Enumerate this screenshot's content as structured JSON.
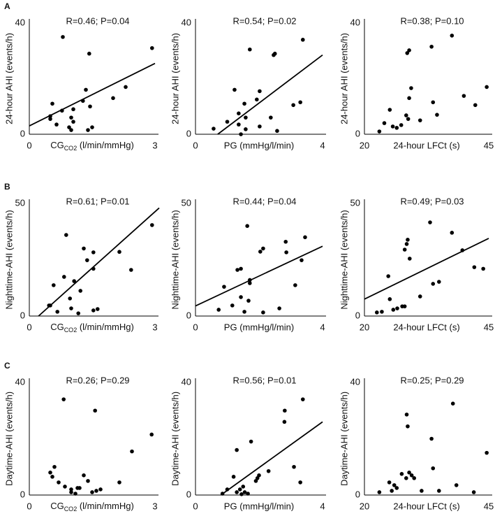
{
  "panel_labels": [
    "A",
    "B",
    "C"
  ],
  "chart_data": [
    {
      "type": "scatter",
      "annotation": "R=0.46; P=0.04",
      "xlabel": [
        "CG",
        "CO2",
        " (l/min/mmHg)"
      ],
      "ylabel": "24-hour AHI (events/h)",
      "xlim": [
        0,
        3
      ],
      "ylim": [
        0,
        40
      ],
      "xticks": [
        0,
        3
      ],
      "yticks": [
        0,
        40
      ],
      "x": [
        0.8,
        2.93,
        1.43,
        1.35,
        2.3,
        2.0,
        1.28,
        0.55,
        1.45,
        1.05,
        0.78,
        0.5,
        0.5,
        1.0,
        1.05,
        0.65,
        0.95,
        1.0,
        1.5,
        1.4
      ],
      "values": [
        35,
        31,
        29,
        16,
        17,
        13,
        12,
        11,
        10,
        9,
        8.5,
        6.5,
        5.5,
        6,
        4.5,
        3.5,
        2.5,
        1.5,
        2.5,
        1.5
      ],
      "fit_line": {
        "x": [
          0,
          3
        ],
        "y": [
          3,
          25.5
        ]
      }
    },
    {
      "type": "scatter",
      "annotation": "R=0.54; P=0.02",
      "xlabel": "PG (mmHg/l/min)",
      "ylabel": "24-hour AHI (events/h)",
      "xlim": [
        0,
        4
      ],
      "ylim": [
        0,
        40
      ],
      "xticks": [
        0,
        4
      ],
      "yticks": [
        0,
        40
      ],
      "x": [
        3.38,
        1.71,
        2.5,
        2.46,
        1.23,
        2.02,
        1.93,
        1.54,
        3.3,
        3.08,
        1.36,
        1.58,
        1.0,
        2.37,
        0.57,
        1.36,
        2.02,
        2.57,
        1.58,
        1.43
      ],
      "values": [
        34,
        30.5,
        29,
        28.5,
        16,
        15.5,
        12.5,
        11,
        11.5,
        10.5,
        7.5,
        6,
        4.5,
        6,
        2,
        3.5,
        2.8,
        1.2,
        1.8,
        0
      ],
      "fit_line": {
        "x": [
          0.7,
          4
        ],
        "y": [
          0,
          28.5
        ]
      }
    },
    {
      "type": "scatter",
      "annotation": "R=0.38; P=0.10",
      "xlabel": "24-hour LFCt (s)",
      "ylabel": "24-hour AHI (events/h)",
      "xlim": [
        20,
        45
      ],
      "ylim": [
        0,
        40
      ],
      "xticks": [
        20,
        45
      ],
      "yticks": [
        0,
        40
      ],
      "x": [
        37.6,
        29,
        28.6,
        33.5,
        29.4,
        29,
        40,
        44.6,
        42.3,
        33.8,
        25.1,
        28.4,
        28.8,
        34.6,
        31.2,
        24,
        25.7,
        26.5,
        27.4,
        23
      ],
      "values": [
        35.5,
        30.2,
        29.2,
        31.5,
        16.6,
        13,
        13.8,
        17,
        10.5,
        11.5,
        8.8,
        6.8,
        5.5,
        7,
        5,
        4,
        2.8,
        2.3,
        3.3,
        1
      ]
    },
    {
      "type": "scatter",
      "annotation": "R=0.61; P=0.01",
      "xlabel": [
        "CG",
        "CO2",
        " (l/min/mmHg)"
      ],
      "ylabel": "Nighttime-AHI (events/h)",
      "xlim": [
        0,
        3
      ],
      "ylim": [
        0,
        50
      ],
      "xticks": [
        0,
        3
      ],
      "yticks": [
        0,
        50
      ],
      "x": [
        2.93,
        0.88,
        1.3,
        1.53,
        2.15,
        1.38,
        1.53,
        2.43,
        0.83,
        1.07,
        0.58,
        1.22,
        0.97,
        1.0,
        0.47,
        0.5,
        0.67,
        1.17,
        1.63,
        1.53
      ],
      "values": [
        40.4,
        36,
        30,
        28.3,
        28.5,
        24.8,
        21,
        20.5,
        17.4,
        15.5,
        13.7,
        11.2,
        7.8,
        3.4,
        4.7,
        4.7,
        1.9,
        1.2,
        3.1,
        2.5
      ],
      "fit_line": {
        "x": [
          0.22,
          3.1
        ],
        "y": [
          0,
          48
        ]
      }
    },
    {
      "type": "scatter",
      "annotation": "R=0.44; P=0.04",
      "xlabel": "PG (mmHg/l/min)",
      "ylabel": "Nighttime-AHI (events/h)",
      "xlim": [
        0,
        4
      ],
      "ylim": [
        0,
        50
      ],
      "xticks": [
        0,
        4
      ],
      "yticks": [
        0,
        50
      ],
      "x": [
        2.84,
        1.63,
        3.45,
        2.13,
        2.04,
        2.86,
        1.43,
        1.32,
        1.71,
        1.71,
        3.14,
        3.34,
        0.9,
        1.43,
        1.67,
        1.16,
        0.73,
        1.54,
        2.13,
        2.64
      ],
      "values": [
        33,
        40,
        35,
        30,
        28.6,
        28.3,
        21,
        20.5,
        16,
        14.6,
        13.7,
        24.8,
        13,
        8.4,
        6.8,
        4.7,
        2.8,
        1.9,
        1.6,
        3.4
      ],
      "fit_line": {
        "x": [
          0,
          4
        ],
        "y": [
          4.5,
          31
        ]
      }
    },
    {
      "type": "scatter",
      "annotation": "R=0.49; P=0.03",
      "xlabel": "24-hour LFCt (s)",
      "ylabel": "Nighttime-AHI (events/h)",
      "xlim": [
        20,
        45
      ],
      "ylim": [
        0,
        50
      ],
      "xticks": [
        20,
        45
      ],
      "yticks": [
        0,
        50
      ],
      "x": [
        33.2,
        37.6,
        28.7,
        28.5,
        28.1,
        29.1,
        39.7,
        42.1,
        43.9,
        24.8,
        35,
        33.8,
        31.2,
        25.1,
        27.6,
        28.1,
        26.6,
        25.8,
        23.5,
        22.5
      ],
      "values": [
        41.6,
        37,
        33.9,
        32,
        29.5,
        25.5,
        29.2,
        21.7,
        21,
        17.7,
        15.2,
        14.3,
        8.7,
        7.5,
        4.3,
        4.3,
        3.4,
        2.8,
        1.9,
        1.6
      ],
      "fit_line": {
        "x": [
          20,
          45
        ],
        "y": [
          7.5,
          34.5
        ]
      }
    },
    {
      "type": "scatter",
      "annotation": "R=0.26; P=0.29",
      "xlabel": [
        "CG",
        "CO2",
        " (l/min/mmHg)"
      ],
      "ylabel": "Daytime-AHI (events/h)",
      "xlim": [
        0,
        3
      ],
      "ylim": [
        0,
        40
      ],
      "xticks": [
        0,
        3
      ],
      "yticks": [
        0,
        40
      ],
      "x": [
        0.82,
        1.57,
        2.92,
        2.45,
        0.6,
        0.5,
        0.55,
        0.7,
        0.85,
        1.0,
        1.15,
        1.2,
        1.0,
        1.1,
        1.3,
        1.4,
        1.5,
        1.6,
        1.7,
        2.15
      ],
      "values": [
        34,
        30,
        21.5,
        15.5,
        10,
        8,
        6.5,
        4.5,
        3,
        2,
        2.5,
        2.5,
        1,
        0.5,
        7,
        5,
        1,
        1.5,
        2,
        4.5
      ]
    },
    {
      "type": "scatter",
      "annotation": "R=0.56; P=0.01",
      "xlabel": "PG (mmHg/l/min)",
      "ylabel": "Daytime-AHI (events/h)",
      "xlim": [
        0,
        4
      ],
      "ylim": [
        0,
        40
      ],
      "xticks": [
        0,
        4
      ],
      "yticks": [
        0,
        40
      ],
      "x": [
        3.38,
        2.81,
        2.8,
        1.3,
        1.75,
        3.1,
        3.3,
        2.3,
        2.0,
        1.95,
        1.9,
        1.2,
        1.0,
        1.3,
        1.4,
        1.5,
        1.55,
        1.65,
        1.45,
        0.85
      ],
      "values": [
        34,
        30,
        26,
        16,
        19,
        10,
        4.5,
        8.5,
        7,
        6,
        5,
        6.5,
        2,
        1,
        2,
        3,
        1,
        0.5,
        0.3,
        0.5
      ],
      "fit_line": {
        "x": [
          0.8,
          4
        ],
        "y": [
          0,
          26
        ]
      }
    },
    {
      "type": "scatter",
      "annotation": "R=0.25; P=0.29",
      "xlabel": "24-hour LFCt (s)",
      "ylabel": "Daytime-AHI (events/h)",
      "xlim": [
        20,
        45
      ],
      "ylim": [
        0,
        40
      ],
      "xticks": [
        20,
        45
      ],
      "yticks": [
        0,
        40
      ],
      "x": [
        37.8,
        28.5,
        28.7,
        33.5,
        33.8,
        44.6,
        38.5,
        42,
        29,
        29.5,
        30,
        28.4,
        27.5,
        25,
        26,
        26.5,
        25.5,
        23,
        31.5,
        35
      ],
      "values": [
        32.5,
        28.6,
        24.4,
        20,
        9.5,
        15,
        3.5,
        1,
        8,
        7,
        6,
        6,
        7.5,
        4.5,
        3.5,
        2.5,
        1.5,
        1,
        1.5,
        1.5
      ]
    }
  ]
}
